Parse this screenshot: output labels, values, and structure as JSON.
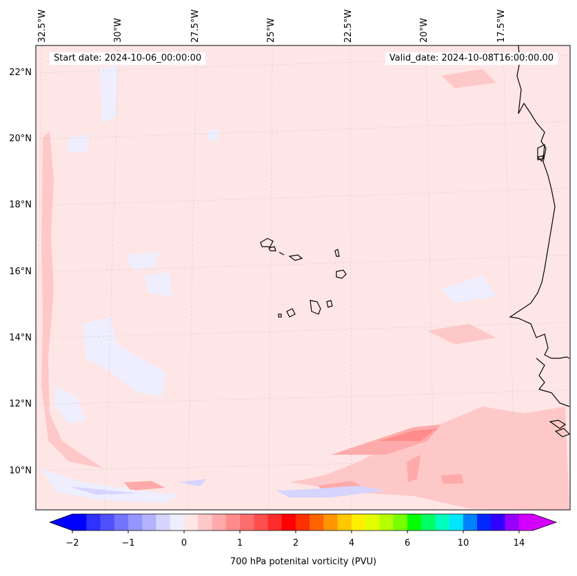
{
  "map": {
    "start_label": "Start date: 2024-10-06_00:00:00",
    "valid_label": "Valid_date: 2024-10-08T16:00:00.00",
    "lon_labels": [
      "32.5°W",
      "30°W",
      "27.5°W",
      "25°W",
      "22.5°W",
      "20°W",
      "17.5°W"
    ],
    "lat_labels": [
      "22°N",
      "20°N",
      "18°N",
      "16°N",
      "14°N",
      "12°N",
      "10°N"
    ],
    "background_color": "#ffe6e6",
    "coast_color": "#000000"
  },
  "colorbar": {
    "label": "700 hPa potenital vorticity (PVU)",
    "ticks": [
      "−2",
      "−1",
      "0",
      "1",
      "2",
      "4",
      "6",
      "10",
      "14"
    ],
    "colors": [
      "#0000ff",
      "#3030ff",
      "#5050ff",
      "#7474ff",
      "#9595ff",
      "#b3b3ff",
      "#d5d5ff",
      "#eeeeff",
      "#ffe6e6",
      "#ffc8c8",
      "#ffaaaa",
      "#ff8c8c",
      "#ff6e6e",
      "#ff5050",
      "#ff2c2c",
      "#ff0000",
      "#ff3000",
      "#ff6400",
      "#ff9600",
      "#ffc800",
      "#ffef00",
      "#e1ff00",
      "#b4ff00",
      "#78ff00",
      "#00ff00",
      "#00ff64",
      "#00ffbc",
      "#00e6ff",
      "#0082ff",
      "#0028ff",
      "#3200ff",
      "#9600ff",
      "#d200ff"
    ],
    "under_color": "#0000ff",
    "over_color": "#d200ff"
  }
}
